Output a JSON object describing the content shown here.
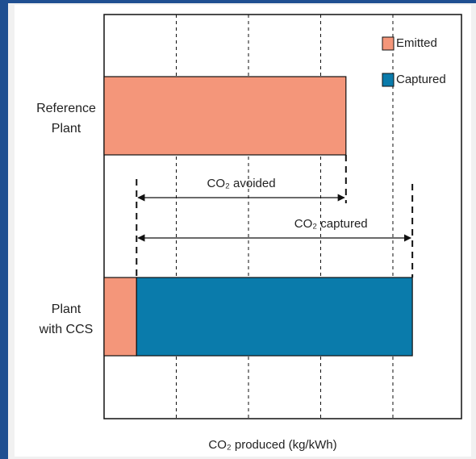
{
  "chart_data": {
    "type": "stacked-bar-horizontal",
    "categories": [
      "Reference\nPlant",
      "Plant\nwith CCS"
    ],
    "series": [
      {
        "name": "Emitted",
        "color": "#f4967a",
        "values": [
          3.35,
          0.45
        ]
      },
      {
        "name": "Captured",
        "color": "#0a7bab",
        "values": [
          0,
          3.82
        ]
      }
    ],
    "xlim": [
      0,
      4.95
    ],
    "xticks": [
      1,
      2,
      3,
      4
    ],
    "grid": true,
    "xlabel": "CO₂ produced (kg/kWh)",
    "annotations": [
      "CO₂ avoided",
      "CO₂ captured"
    ],
    "legend": "upper right"
  }
}
